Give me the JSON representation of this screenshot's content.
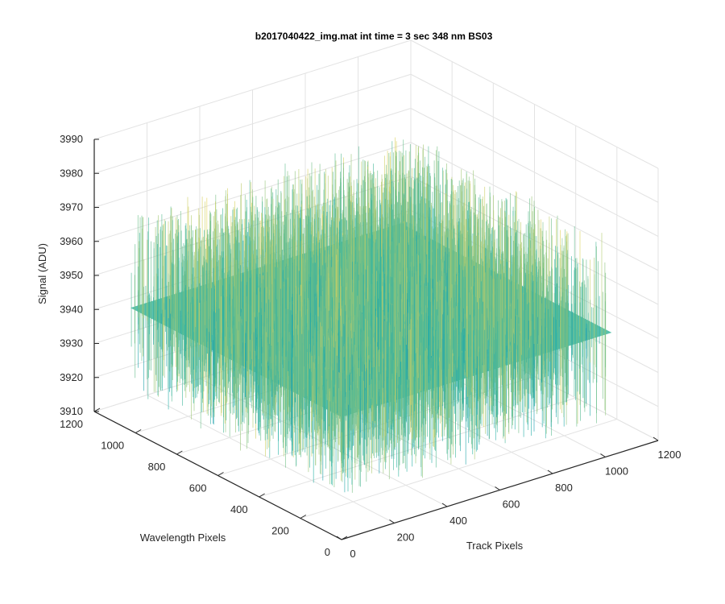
{
  "chart_data": {
    "type": "surface",
    "title": "b2017040422_img.mat int time = 3 sec  348 nm BS03",
    "xlabel": "Track Pixels",
    "ylabel": "Wavelength Pixels",
    "zlabel": "Signal (ADU)",
    "xlim": [
      0,
      1200
    ],
    "ylim": [
      0,
      1200
    ],
    "zlim": [
      3910,
      3990
    ],
    "xticks": [
      "0",
      "200",
      "400",
      "600",
      "800",
      "1000",
      "1200"
    ],
    "yticks": [
      "0",
      "200",
      "400",
      "600",
      "800",
      "1000",
      "1200"
    ],
    "zticks": [
      "3910",
      "3920",
      "3930",
      "3940",
      "3950",
      "3960",
      "3970",
      "3980",
      "3990"
    ],
    "surface": {
      "x_extent": [
        0,
        1024
      ],
      "y_extent": [
        0,
        1024
      ],
      "mean": 3946,
      "noise_range": [
        3920,
        3975
      ],
      "colormap": "parula"
    },
    "grid": true,
    "colors": {
      "low": "#0072bd",
      "mid": "#2ab3a5",
      "high": "#e6d45a"
    }
  }
}
